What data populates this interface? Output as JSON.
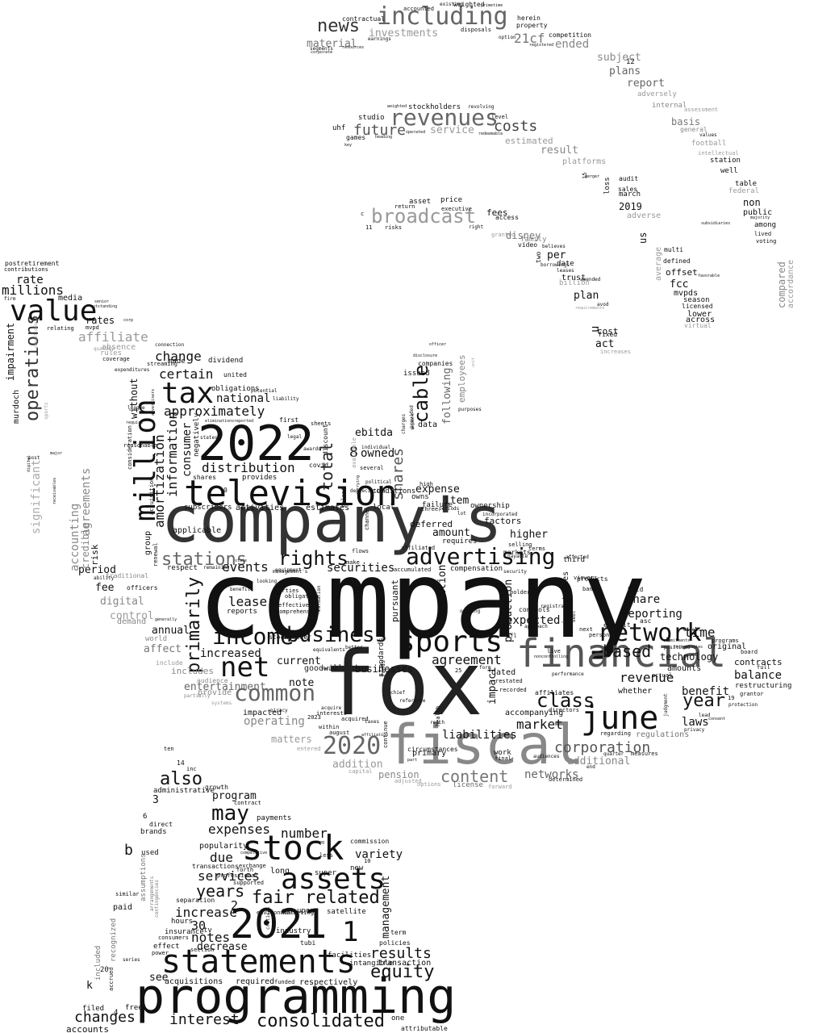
{
  "palette": {
    "background": "#ffffff",
    "word_shades": [
      "#111111",
      "#222222",
      "#333333",
      "#444444",
      "#555555",
      "#666666",
      "#777777",
      "#888888",
      "#999999",
      "#aaaaaa",
      "#bbbbbb"
    ]
  },
  "words": [
    "company",
    "fox",
    "company's",
    "fiscal",
    "financial",
    "television",
    "2022",
    "programming",
    "2021",
    "stock",
    "statements",
    "june",
    "sports",
    "net",
    "assets",
    "tax",
    "value",
    "million",
    "network",
    "advertising",
    "common",
    "including",
    "revenues",
    "broadcast",
    "income",
    "business",
    "rights",
    "stations",
    "class",
    "news",
    "cable",
    "shares",
    "operations",
    "total",
    "primarily",
    "may",
    "also",
    "fair",
    "related",
    "years",
    "equity",
    "results",
    "consolidated",
    "changes",
    "interest",
    "2020",
    "content",
    "corporation",
    "year",
    "costs",
    "future",
    "expenses",
    "services",
    "due",
    "number",
    "increase",
    "notes",
    "lease",
    "based",
    "revenue",
    "agreement",
    "distribution",
    "approximately",
    "certain",
    "change",
    "affiliate",
    "national",
    "information",
    "amortization",
    "consumer",
    "events",
    "securities",
    "liabilities",
    "market",
    "expected",
    "reporting",
    "share",
    "benefit",
    "balance",
    "contracts",
    "time",
    "laws",
    "regulations",
    "networks",
    "additional",
    "addition",
    "pension",
    "matters",
    "operating",
    "entertainment",
    "goodwill",
    "businesses",
    "note",
    "current",
    "increased",
    "affect",
    "annual",
    "control",
    "digital",
    "fee",
    "period",
    "risk",
    "credible",
    "accounting",
    "agreements",
    "significant",
    "impairment",
    "murdoch",
    "rate",
    "millions",
    "media",
    "rates",
    "ebitda",
    "owned",
    "expense",
    "item",
    "amount",
    "deferred",
    "higher",
    "factors",
    "production",
    "impact",
    "condition",
    "pursuant",
    "following",
    "employees",
    "data",
    "issued",
    "fcc",
    "plan",
    "act",
    "cost",
    "u",
    "per",
    "date",
    "family",
    "video",
    "disney",
    "fees",
    "access",
    "price",
    "asset",
    "2019",
    "march",
    "sales",
    "audit",
    "loss",
    "non",
    "public",
    "among",
    "table",
    "well",
    "station",
    "football",
    "basis",
    "general",
    "internal",
    "report",
    "plans",
    "subject",
    "ended",
    "21cf",
    "investments",
    "material",
    "contractual",
    "accounted",
    "weighted",
    "herein",
    "property",
    "competition",
    "uhf",
    "studio",
    "games",
    "estimated",
    "service",
    "result",
    "platforms",
    "stockholders",
    "revolving",
    "level",
    "12",
    "adversely",
    "federal",
    "compared",
    "accordance",
    "average",
    "multi",
    "defined",
    "offset",
    "mvpds",
    "season",
    "licensed",
    "lower",
    "across",
    "virtual",
    "trust",
    "billion",
    "amended",
    "avod",
    "fixed",
    "increases",
    "us",
    "adverse",
    "granted",
    "risks",
    "return",
    "executive",
    "right",
    "subsidiaries",
    "lived",
    "voting",
    "majority",
    "intellectual",
    "values",
    "favorable",
    "assessment",
    "15",
    "merger",
    "leases",
    "borrowings",
    "believes",
    "requirements",
    "two",
    "11",
    "c",
    "program",
    "payments",
    "contract",
    "administrative",
    "growth",
    "inc",
    "ten",
    "14",
    "3",
    "6",
    "direct",
    "brands",
    "used",
    "b",
    "assumptions",
    "arrangements",
    "contingencies",
    "recognized",
    "included",
    "paid",
    "similar",
    "series",
    "accrued",
    "filed",
    "accounts",
    "free",
    "4",
    "k",
    "20",
    "see",
    "acquisitions",
    "required",
    "funded",
    "respectively",
    "one",
    "attributable",
    "tubi",
    "industry",
    "facilities",
    "intangible",
    "transaction",
    "policies",
    "term",
    "management",
    "satellite",
    "upon",
    "hours",
    "separation",
    "effect",
    "decrease",
    "consumers",
    "power",
    "section",
    "insurance",
    "tv",
    "critical",
    "environment",
    "marketing",
    "exchange",
    "popularity",
    "competitive",
    "supported",
    "professional",
    "forth",
    "transactions",
    "long",
    "super",
    "less",
    "commission",
    "using",
    "new",
    "variety",
    "10",
    "2",
    "30",
    "1",
    "8",
    "0",
    "covid",
    "discount",
    "provides",
    "shares",
    "conditions",
    "subscribers",
    "activities",
    "estimates",
    "local",
    "applicable",
    "group",
    "respect",
    "remaining",
    "benefits",
    "reports",
    "effective",
    "comprehensive",
    "stockholder",
    "equivalents",
    "better",
    "various",
    "25",
    "form",
    "dated",
    "restated",
    "recorded",
    "accompanying",
    "affiliates",
    "directors",
    "whether",
    "regarding",
    "quarter",
    "measures",
    "end",
    "work",
    "final",
    "audiences",
    "determined",
    "forward",
    "license",
    "options",
    "adjusted",
    "capital",
    "entered",
    "interests",
    "impacted",
    "systems",
    "partially",
    "provide",
    "includes",
    "audience",
    "include",
    "world",
    "demand",
    "generally",
    "officers",
    "traditional",
    "ability",
    "absence",
    "rules",
    "quality",
    "coverage",
    "expenditures",
    "streaming",
    "connection",
    "made",
    "dividend",
    "united",
    "obligations",
    "potential",
    "without",
    "league",
    "require",
    "reasonable",
    "consideration",
    "acquisition",
    "renewal",
    "negatively",
    "eliminations",
    "reported",
    "first",
    "sheets",
    "states",
    "legal",
    "awards",
    "liability",
    "individual",
    "several",
    "political",
    "depreciation",
    "talent",
    "carrying",
    "available",
    "high",
    "owns",
    "failure",
    "three",
    "periods",
    "lot",
    "ownership",
    "incorporated",
    "requires",
    "compensation",
    "accumulated",
    "affiliated",
    "security",
    "selling",
    "markets",
    "terms",
    "payable",
    "products",
    "viewers",
    "third",
    "affected",
    "held",
    "bank",
    "asc",
    "exhibit",
    "positions",
    "except",
    "amounts",
    "actual",
    "full",
    "board",
    "original",
    "programs",
    "restructuring",
    "grantor",
    "protection",
    "19",
    "lead",
    "consent",
    "privacy",
    "technology",
    "technologies",
    "commitments",
    "judgment",
    "debt",
    "live",
    "nfl",
    "approach",
    "controls",
    "registrant",
    "holders",
    "inventories",
    "next",
    "personal",
    "performance",
    "noncontrolling",
    "funds",
    "standards",
    "reference",
    "chief",
    "health",
    "reach",
    "continue",
    "part",
    "circumstances",
    "primary",
    "affiliation",
    "taxes",
    "acquired",
    "august",
    "2023",
    "piracy",
    "acquire",
    "within",
    "parties",
    "obligation",
    "looking",
    "state",
    "management's",
    "equipment",
    "valuation",
    "make",
    "flows",
    "channel",
    "corporate",
    "segments",
    "resources",
    "earnings",
    "option",
    "disposals",
    "registered",
    "primetime",
    "weighted",
    "heading",
    "operated",
    "redeemable",
    "key",
    "existing",
    "postretirement",
    "contributions",
    "firm",
    "senior",
    "outstanding",
    "relating",
    "mvpd",
    "corp",
    "consolidation",
    "sports",
    "digital",
    "major",
    "post",
    "receivables",
    "advertisers",
    "companies",
    "disclosure",
    "officer",
    "unit",
    "purposes",
    "provided",
    "charges",
    "segment",
    "ongoing"
  ]
}
